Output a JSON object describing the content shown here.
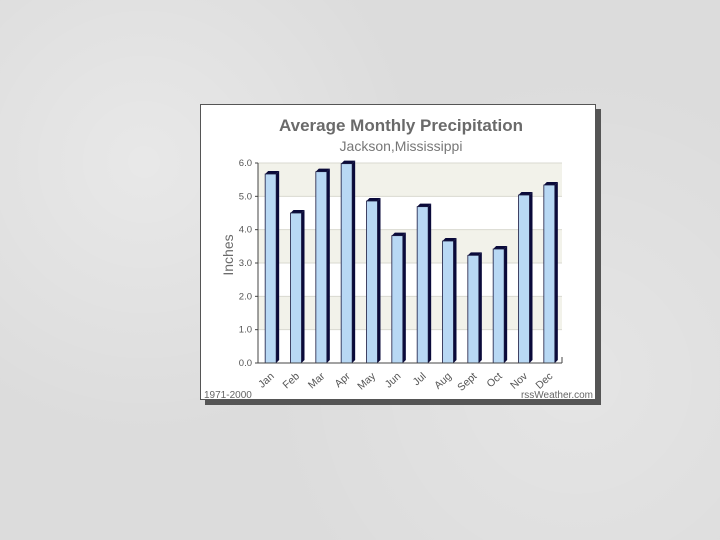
{
  "chart_data": {
    "type": "bar",
    "title": "Average Monthly Precipitation",
    "subtitle": "Jackson,Mississippi",
    "xlabel": "",
    "ylabel": "Inches",
    "ylim": [
      0,
      6
    ],
    "yticks": [
      "0.0",
      "1.0",
      "2.0",
      "3.0",
      "4.0",
      "5.0",
      "6.0"
    ],
    "categories": [
      "Jan",
      "Feb",
      "Mar",
      "Apr",
      "May",
      "Jun",
      "Jul",
      "Aug",
      "Sept",
      "Oct",
      "Nov",
      "Dec"
    ],
    "values": [
      5.67,
      4.5,
      5.74,
      5.98,
      4.86,
      3.82,
      4.69,
      3.66,
      3.23,
      3.42,
      5.04,
      5.34
    ],
    "grid": true,
    "bar_color": "#b8d8f4",
    "bar_shadow_color": "#0a0a3a",
    "band_color": "#f2f2ea"
  },
  "footer": {
    "left": "1971-2000",
    "right": "rssWeather.com"
  }
}
